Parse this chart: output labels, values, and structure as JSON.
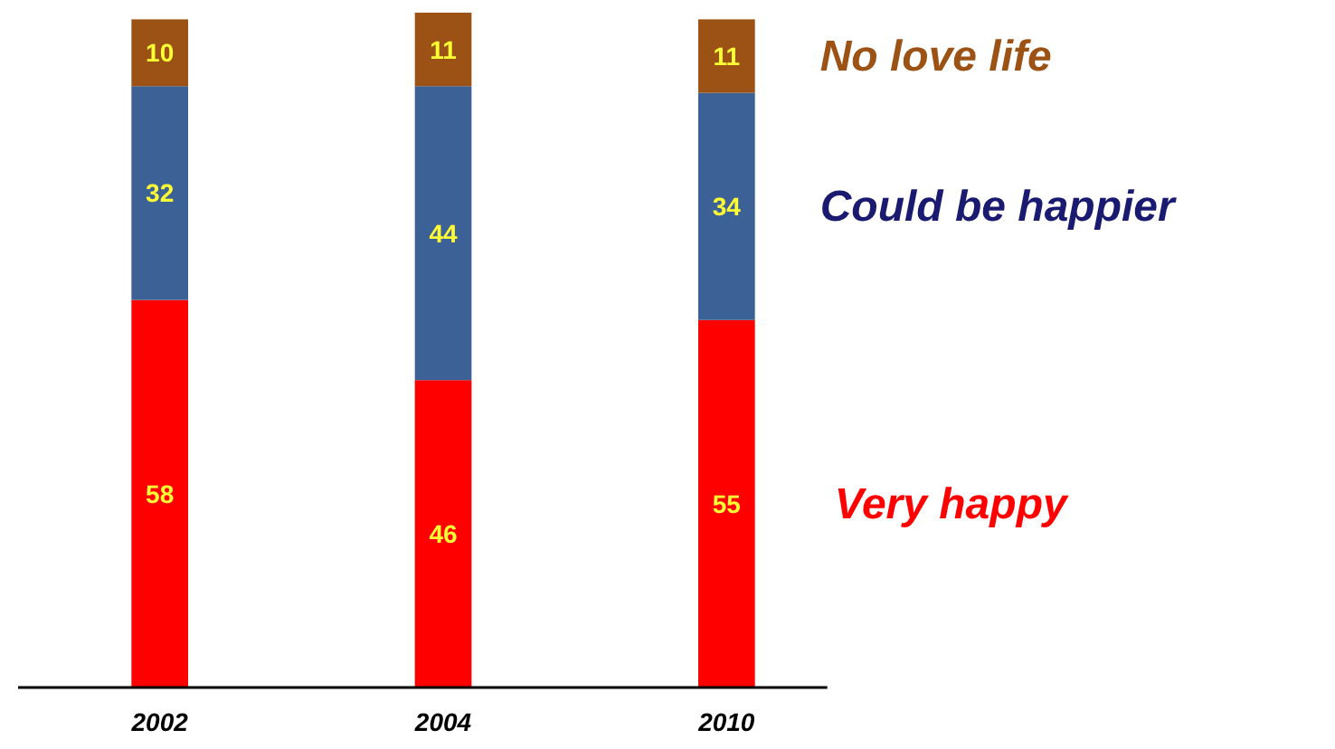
{
  "chart_data": {
    "type": "bar",
    "stacked": true,
    "categories": [
      "2002",
      "2004",
      "2010"
    ],
    "series": [
      {
        "name": "Very happy",
        "color": "#ff0000",
        "values": [
          58,
          46,
          55
        ]
      },
      {
        "name": "Could be happier",
        "color": "#3c6196",
        "values": [
          32,
          44,
          34
        ]
      },
      {
        "name": "No love life",
        "color": "#9c5214",
        "values": [
          10,
          11,
          11
        ]
      }
    ],
    "data_labels": true,
    "legend": "right"
  }
}
